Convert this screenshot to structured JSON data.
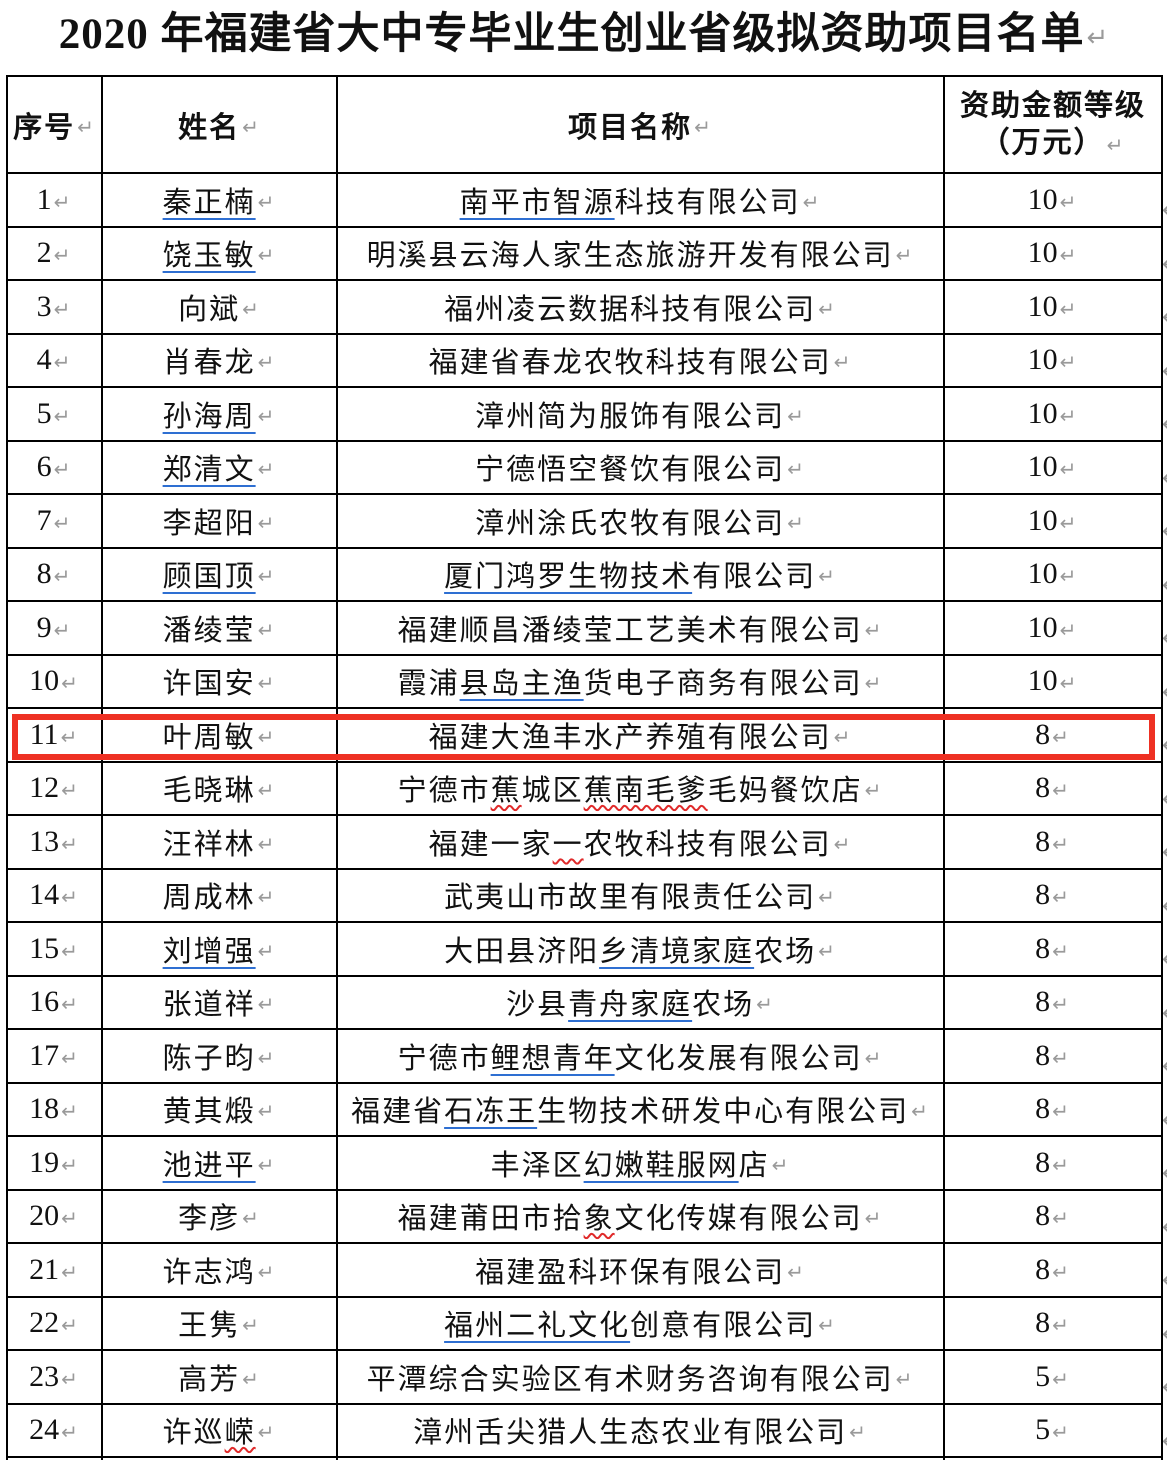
{
  "title": {
    "text": "2020 年福建省大中专毕业生创业省级拟资助项目名单"
  },
  "marks": {
    "return_mark": "↵"
  },
  "colors": {
    "accent_red": "#ee3123",
    "link_blue": "#2e6fd2",
    "wavy_red": "#e02a2a",
    "mark_gray": "#9a9a9a",
    "border_black": "#000000",
    "text_black": "#111111"
  },
  "highlight": {
    "row_index": 11
  },
  "table": {
    "headers": [
      {
        "label": "序号"
      },
      {
        "label": "姓名"
      },
      {
        "label": "项目名称"
      },
      {
        "label": "资助金额等级",
        "label_line2": "（万元）"
      }
    ],
    "rows": [
      {
        "seq": "1",
        "name": [
          {
            "t": "秦正楠",
            "u": "blue"
          }
        ],
        "project": [
          {
            "t": "南平市智源",
            "u": "blue"
          },
          {
            "t": "科技有限公司",
            "u": ""
          }
        ],
        "amount": "10"
      },
      {
        "seq": "2",
        "name": [
          {
            "t": "饶玉敏",
            "u": "blue"
          }
        ],
        "project": [
          {
            "t": "明溪县云海人家生态旅游开发有限公司",
            "u": ""
          }
        ],
        "amount": "10"
      },
      {
        "seq": "3",
        "name": [
          {
            "t": "向斌",
            "u": ""
          }
        ],
        "project": [
          {
            "t": "福州凌云数据科技有限公司",
            "u": ""
          }
        ],
        "amount": "10"
      },
      {
        "seq": "4",
        "name": [
          {
            "t": "肖春龙",
            "u": ""
          }
        ],
        "project": [
          {
            "t": "福建省春龙农牧科技有限公司",
            "u": ""
          }
        ],
        "amount": "10"
      },
      {
        "seq": "5",
        "name": [
          {
            "t": "孙海周",
            "u": "blue"
          }
        ],
        "project": [
          {
            "t": "漳州简为服饰有限公司",
            "u": ""
          }
        ],
        "amount": "10"
      },
      {
        "seq": "6",
        "name": [
          {
            "t": "郑清文",
            "u": "blue"
          }
        ],
        "project": [
          {
            "t": "宁德悟空餐饮有限公司",
            "u": ""
          }
        ],
        "amount": "10"
      },
      {
        "seq": "7",
        "name": [
          {
            "t": "李超阳",
            "u": ""
          }
        ],
        "project": [
          {
            "t": "漳州涂氏农牧有限公司",
            "u": ""
          }
        ],
        "amount": "10"
      },
      {
        "seq": "8",
        "name": [
          {
            "t": "顾国顶",
            "u": "blue"
          }
        ],
        "project": [
          {
            "t": "厦门鸿罗生物技术",
            "u": "blue"
          },
          {
            "t": "有限公司",
            "u": ""
          }
        ],
        "amount": "10"
      },
      {
        "seq": "9",
        "name": [
          {
            "t": "潘绫莹",
            "u": ""
          }
        ],
        "project": [
          {
            "t": "福建顺昌潘绫莹工艺美术有限公司",
            "u": ""
          }
        ],
        "amount": "10"
      },
      {
        "seq": "10",
        "name": [
          {
            "t": "许国安",
            "u": ""
          }
        ],
        "project": [
          {
            "t": "霞浦",
            "u": ""
          },
          {
            "t": "县岛主渔",
            "u": "blue"
          },
          {
            "t": "货电子商务有限公司",
            "u": ""
          }
        ],
        "amount": "10"
      },
      {
        "seq": "11",
        "name": [
          {
            "t": "叶周敏",
            "u": ""
          }
        ],
        "project": [
          {
            "t": "福建大渔丰水产养殖有限公司",
            "u": ""
          }
        ],
        "amount": "8"
      },
      {
        "seq": "12",
        "name": [
          {
            "t": "毛晓琳",
            "u": ""
          }
        ],
        "project": [
          {
            "t": "宁德市",
            "u": ""
          },
          {
            "t": "蕉",
            "u": "wavy"
          },
          {
            "t": "城区",
            "u": ""
          },
          {
            "t": "蕉南毛爹",
            "u": "wavy"
          },
          {
            "t": "毛妈餐饮店",
            "u": ""
          }
        ],
        "amount": "8"
      },
      {
        "seq": "13",
        "name": [
          {
            "t": "汪祥林",
            "u": ""
          }
        ],
        "project": [
          {
            "t": "福建一家",
            "u": ""
          },
          {
            "t": "一",
            "u": "wavy"
          },
          {
            "t": "农牧科技有限公司",
            "u": ""
          }
        ],
        "amount": "8"
      },
      {
        "seq": "14",
        "name": [
          {
            "t": "周成林",
            "u": ""
          }
        ],
        "project": [
          {
            "t": "武夷山市故里有限责任公司",
            "u": ""
          }
        ],
        "amount": "8"
      },
      {
        "seq": "15",
        "name": [
          {
            "t": "刘增强",
            "u": "blue"
          }
        ],
        "project": [
          {
            "t": "大田县济阳",
            "u": ""
          },
          {
            "t": "乡清境家庭",
            "u": "blue"
          },
          {
            "t": "农场",
            "u": ""
          }
        ],
        "amount": "8"
      },
      {
        "seq": "16",
        "name": [
          {
            "t": "张道祥",
            "u": ""
          }
        ],
        "project": [
          {
            "t": "沙县",
            "u": ""
          },
          {
            "t": "青舟家庭",
            "u": "blue"
          },
          {
            "t": "农场",
            "u": ""
          }
        ],
        "amount": "8"
      },
      {
        "seq": "17",
        "name": [
          {
            "t": "陈子昀",
            "u": ""
          }
        ],
        "project": [
          {
            "t": "宁德市",
            "u": ""
          },
          {
            "t": "鲤想青年",
            "u": "blue"
          },
          {
            "t": "文化发展有限公司",
            "u": ""
          }
        ],
        "amount": "8"
      },
      {
        "seq": "18",
        "name": [
          {
            "t": "黄其煅",
            "u": ""
          }
        ],
        "project": [
          {
            "t": "福建省",
            "u": ""
          },
          {
            "t": "石冻王",
            "u": "blue"
          },
          {
            "t": "生物技术研发中心有限公司",
            "u": ""
          }
        ],
        "amount": "8"
      },
      {
        "seq": "19",
        "name": [
          {
            "t": "池进平",
            "u": "blue"
          }
        ],
        "project": [
          {
            "t": "丰泽区",
            "u": ""
          },
          {
            "t": "幻嫩鞋服网",
            "u": "blue"
          },
          {
            "t": "店",
            "u": ""
          }
        ],
        "amount": "8"
      },
      {
        "seq": "20",
        "name": [
          {
            "t": "李彦",
            "u": ""
          }
        ],
        "project": [
          {
            "t": "福建莆田市拾",
            "u": ""
          },
          {
            "t": "象",
            "u": "wavy"
          },
          {
            "t": "文化传媒有限公司",
            "u": ""
          }
        ],
        "amount": "8"
      },
      {
        "seq": "21",
        "name": [
          {
            "t": "许志鸿",
            "u": ""
          }
        ],
        "project": [
          {
            "t": "福建盈科环保有限公司",
            "u": ""
          }
        ],
        "amount": "8"
      },
      {
        "seq": "22",
        "name": [
          {
            "t": "王隽",
            "u": ""
          }
        ],
        "project": [
          {
            "t": "福州二礼文化",
            "u": "blue"
          },
          {
            "t": "创意有限公司",
            "u": ""
          }
        ],
        "amount": "8"
      },
      {
        "seq": "23",
        "name": [
          {
            "t": "高芳",
            "u": ""
          }
        ],
        "project": [
          {
            "t": "平潭综合实验区有术财务咨询有限公司",
            "u": ""
          }
        ],
        "amount": "5"
      },
      {
        "seq": "24",
        "name": [
          {
            "t": "许巡",
            "u": ""
          },
          {
            "t": "嵘",
            "u": "wavy"
          }
        ],
        "project": [
          {
            "t": "漳州舌尖猎人生态农业有限公司",
            "u": ""
          }
        ],
        "amount": "5"
      }
    ]
  }
}
